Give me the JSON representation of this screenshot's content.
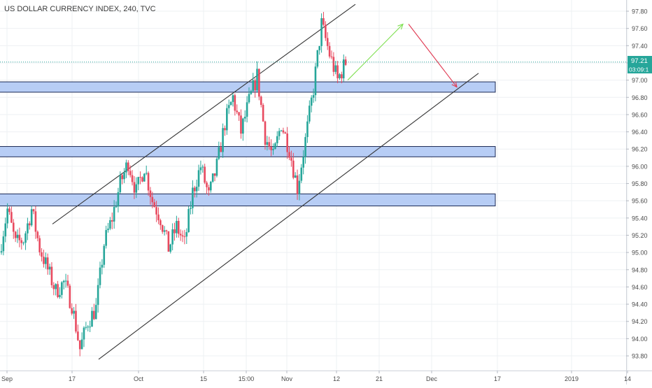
{
  "header": {
    "title": "US DOLLAR CURRENCY INDEX, 240, TVC"
  },
  "price_badge": {
    "value": "97.21",
    "countdown": "03:09:1",
    "color": "#26a69a"
  },
  "colors": {
    "up": "#26a69a",
    "down": "#e84a5f",
    "zone_fill": "#b7cdf5",
    "zone_stroke": "#1c2a55",
    "channel": "#333333",
    "arrow_up": "#7ddf4f",
    "arrow_down": "#e03a52",
    "grid": "#eef0f3",
    "axis_text": "#4a4a4a"
  },
  "chart_data": {
    "type": "candlestick",
    "title": "US DOLLAR CURRENCY INDEX, 240, TVC",
    "xlabel": "",
    "ylabel": "",
    "ylim": [
      93.63,
      97.93
    ],
    "grid": true,
    "x_tick_labels": [
      "Sep",
      "17",
      "Oct",
      "15",
      "15:00",
      "Nov",
      "12",
      "21",
      "Dec",
      "17",
      "2019",
      "14"
    ],
    "y_ticks": [
      93.8,
      94.0,
      94.2,
      94.4,
      94.6,
      94.8,
      95.0,
      95.2,
      95.4,
      95.6,
      95.8,
      96.0,
      96.2,
      96.4,
      96.6,
      96.8,
      97.0,
      97.2,
      97.4,
      97.6,
      97.8
    ],
    "y_tick_labels": [
      "93.80",
      "94.00",
      "94.20",
      "94.40",
      "94.60",
      "94.80",
      "95.00",
      "95.20",
      "95.40",
      "95.60",
      "95.80",
      "96.00",
      "96.20",
      "96.40",
      "96.60",
      "96.80",
      "97.00",
      "97.20",
      "97.40",
      "97.60",
      "97.80"
    ],
    "last_price": 97.21,
    "price_path": [
      {
        "x": 0,
        "y": 95.0
      },
      {
        "x": 1,
        "y": 95.5
      },
      {
        "x": 2,
        "y": 95.1
      },
      {
        "x": 3,
        "y": 95.15
      },
      {
        "x": 4,
        "y": 95.5
      },
      {
        "x": 5,
        "y": 95.05
      },
      {
        "x": 6,
        "y": 94.8
      },
      {
        "x": 7,
        "y": 94.55
      },
      {
        "x": 8,
        "y": 94.65
      },
      {
        "x": 9,
        "y": 94.4
      },
      {
        "x": 10,
        "y": 93.88
      },
      {
        "x": 11,
        "y": 94.2
      },
      {
        "x": 12,
        "y": 94.35
      },
      {
        "x": 13,
        "y": 95.1
      },
      {
        "x": 14,
        "y": 95.4
      },
      {
        "x": 15,
        "y": 95.8
      },
      {
        "x": 16,
        "y": 96.05
      },
      {
        "x": 17,
        "y": 95.7
      },
      {
        "x": 18,
        "y": 96.0
      },
      {
        "x": 19,
        "y": 95.6
      },
      {
        "x": 20,
        "y": 95.4
      },
      {
        "x": 21,
        "y": 95.05
      },
      {
        "x": 22,
        "y": 95.3
      },
      {
        "x": 23,
        "y": 95.1
      },
      {
        "x": 24,
        "y": 95.7
      },
      {
        "x": 25,
        "y": 96.0
      },
      {
        "x": 26,
        "y": 95.65
      },
      {
        "x": 27,
        "y": 96.0
      },
      {
        "x": 28,
        "y": 96.5
      },
      {
        "x": 29,
        "y": 96.8
      },
      {
        "x": 30,
        "y": 96.4
      },
      {
        "x": 31,
        "y": 96.75
      },
      {
        "x": 32,
        "y": 97.05
      },
      {
        "x": 33,
        "y": 96.35
      },
      {
        "x": 34,
        "y": 96.1
      },
      {
        "x": 35,
        "y": 96.5
      },
      {
        "x": 36,
        "y": 96.2
      },
      {
        "x": 37,
        "y": 95.75
      },
      {
        "x": 38,
        "y": 96.3
      },
      {
        "x": 39,
        "y": 96.9
      },
      {
        "x": 40,
        "y": 97.65
      },
      {
        "x": 41,
        "y": 97.3
      },
      {
        "x": 42,
        "y": 97.0
      },
      {
        "x": 43,
        "y": 97.21
      }
    ],
    "support_resistance_zones": [
      {
        "low": 96.86,
        "high": 96.98
      },
      {
        "low": 96.11,
        "high": 96.23
      },
      {
        "low": 95.54,
        "high": 95.68
      }
    ],
    "channel_lines": [
      {
        "name": "upper",
        "from": {
          "x": 0.0,
          "y": 95.0
        },
        "to": {
          "x": 1.0,
          "y": 97.85
        }
      },
      {
        "name": "lower",
        "from": {
          "x": 0.0,
          "y": 93.75
        },
        "to": {
          "x": 1.0,
          "y": 97.08
        }
      }
    ],
    "projection_arrows": [
      {
        "from": 97.0,
        "to": 97.65
      },
      {
        "from": 97.65,
        "to": 96.92
      }
    ]
  }
}
